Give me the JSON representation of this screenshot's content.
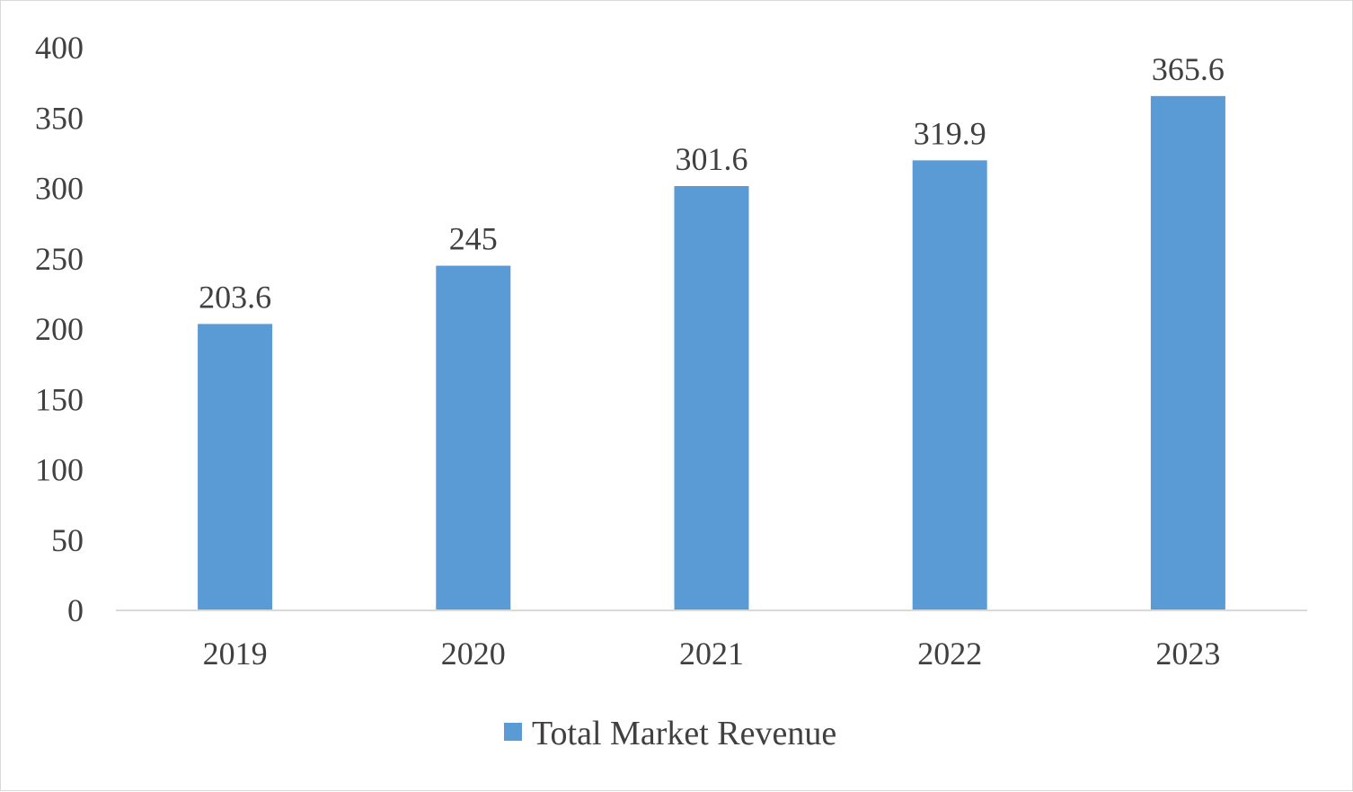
{
  "chart_data": {
    "type": "bar",
    "categories": [
      "2019",
      "2020",
      "2021",
      "2022",
      "2023"
    ],
    "series": [
      {
        "name": "Total Market Revenue",
        "values": [
          203.6,
          245,
          301.6,
          319.9,
          365.6
        ],
        "color": "#5b9bd5"
      }
    ],
    "data_labels": [
      "203.6",
      "245",
      "301.6",
      "319.9",
      "365.6"
    ],
    "yticks": [
      0,
      50,
      100,
      150,
      200,
      250,
      300,
      350,
      400
    ],
    "ylim": [
      0,
      400
    ],
    "grid": false,
    "legend_position": "bottom",
    "title": "",
    "xlabel": "",
    "ylabel": ""
  }
}
